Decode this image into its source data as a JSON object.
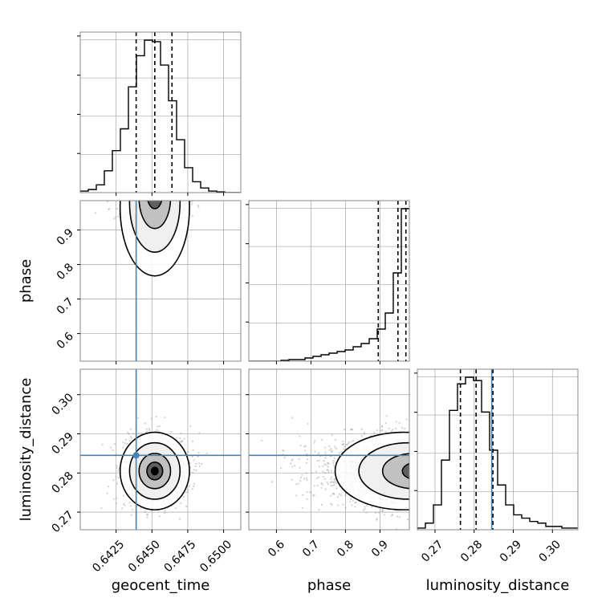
{
  "colors": {
    "truth": "#4682b4",
    "hist": "#000000",
    "grid": "#b0b0b0",
    "points": "#9a9a9a",
    "contour": "#000000"
  },
  "axis_titles": {
    "geocent_time": "geocent_time",
    "phase": "phase",
    "luminosity_distance": "luminosity_distance"
  },
  "chart_data": {
    "type": "corner",
    "parameters": [
      "geocent_time",
      "phase",
      "luminosity_distance"
    ],
    "ranges": {
      "geocent_time": [
        0.64,
        0.6512
      ],
      "phase": [
        0.52,
        0.985
      ],
      "luminosity_distance": [
        0.2655,
        0.3065
      ]
    },
    "ticks": {
      "geocent_time": [
        0.6425,
        0.645,
        0.6475,
        0.65
      ],
      "phase": [
        0.6,
        0.7,
        0.8,
        0.9
      ],
      "luminosity_distance": [
        0.27,
        0.28,
        0.29,
        0.3
      ]
    },
    "tick_labels": {
      "geocent_time": [
        "0.6425",
        "0.6450",
        "0.6475",
        "0.6500"
      ],
      "phase": [
        "0.6",
        "0.7",
        "0.8",
        "0.9"
      ],
      "luminosity_distance": [
        "0.27",
        "0.28",
        "0.29",
        "0.30"
      ]
    },
    "truths": {
      "geocent_time": 0.6439,
      "phase": null,
      "luminosity_distance": 0.2845
    },
    "quantiles": {
      "geocent_time": [
        0.6439,
        0.6452,
        0.6464
      ],
      "phase": [
        0.895,
        0.952,
        0.975
      ],
      "luminosity_distance": [
        0.2765,
        0.2805,
        0.2848
      ]
    },
    "histograms": {
      "geocent_time": {
        "edges": [
          0.64,
          0.64056,
          0.64112,
          0.64168,
          0.64224,
          0.6428,
          0.64336,
          0.64392,
          0.64448,
          0.64504,
          0.6456,
          0.64616,
          0.64672,
          0.64728,
          0.64784,
          0.6484,
          0.64896,
          0.64952,
          0.65008,
          0.65064,
          0.6512
        ],
        "counts": [
          0.01,
          0.02,
          0.05,
          0.14,
          0.27,
          0.41,
          0.68,
          0.88,
          0.98,
          0.97,
          0.82,
          0.59,
          0.34,
          0.16,
          0.07,
          0.03,
          0.01,
          0.005,
          0.0,
          0.0
        ]
      },
      "phase": {
        "edges": [
          0.52,
          0.5433,
          0.5665,
          0.5898,
          0.613,
          0.6363,
          0.6595,
          0.6828,
          0.706,
          0.7293,
          0.7525,
          0.7758,
          0.799,
          0.8223,
          0.8455,
          0.8688,
          0.892,
          0.9153,
          0.9385,
          0.9618,
          0.985
        ],
        "counts": [
          0.0,
          0.0,
          0.0,
          0.0,
          0.005,
          0.01,
          0.01,
          0.02,
          0.03,
          0.04,
          0.05,
          0.06,
          0.07,
          0.09,
          0.11,
          0.14,
          0.2,
          0.3,
          0.55,
          0.95
        ]
      },
      "luminosity_distance": {
        "edges": [
          0.2655,
          0.26755,
          0.2696,
          0.27165,
          0.2737,
          0.27575,
          0.2778,
          0.27985,
          0.2819,
          0.28395,
          0.286,
          0.28805,
          0.2901,
          0.29215,
          0.2942,
          0.29625,
          0.2983,
          0.30035,
          0.3024,
          0.30445,
          0.3065
        ],
        "counts": [
          0.01,
          0.04,
          0.15,
          0.42,
          0.72,
          0.88,
          0.92,
          0.9,
          0.71,
          0.48,
          0.27,
          0.15,
          0.09,
          0.07,
          0.05,
          0.04,
          0.02,
          0.02,
          0.01,
          0.01
        ]
      }
    },
    "scatter_centers": {
      "geocent_time_vs_phase": {
        "x": 0.6452,
        "y": 0.965,
        "sx": 0.0011,
        "sy": 0.06
      },
      "geocent_time_vs_luminosity_distance": {
        "x": 0.6452,
        "y": 0.2805,
        "sx": 0.0011,
        "sy": 0.0045
      },
      "phase_vs_luminosity_distance": {
        "x": 0.968,
        "y": 0.2805,
        "sx": 0.06,
        "sy": 0.0045
      }
    },
    "grid": true
  }
}
